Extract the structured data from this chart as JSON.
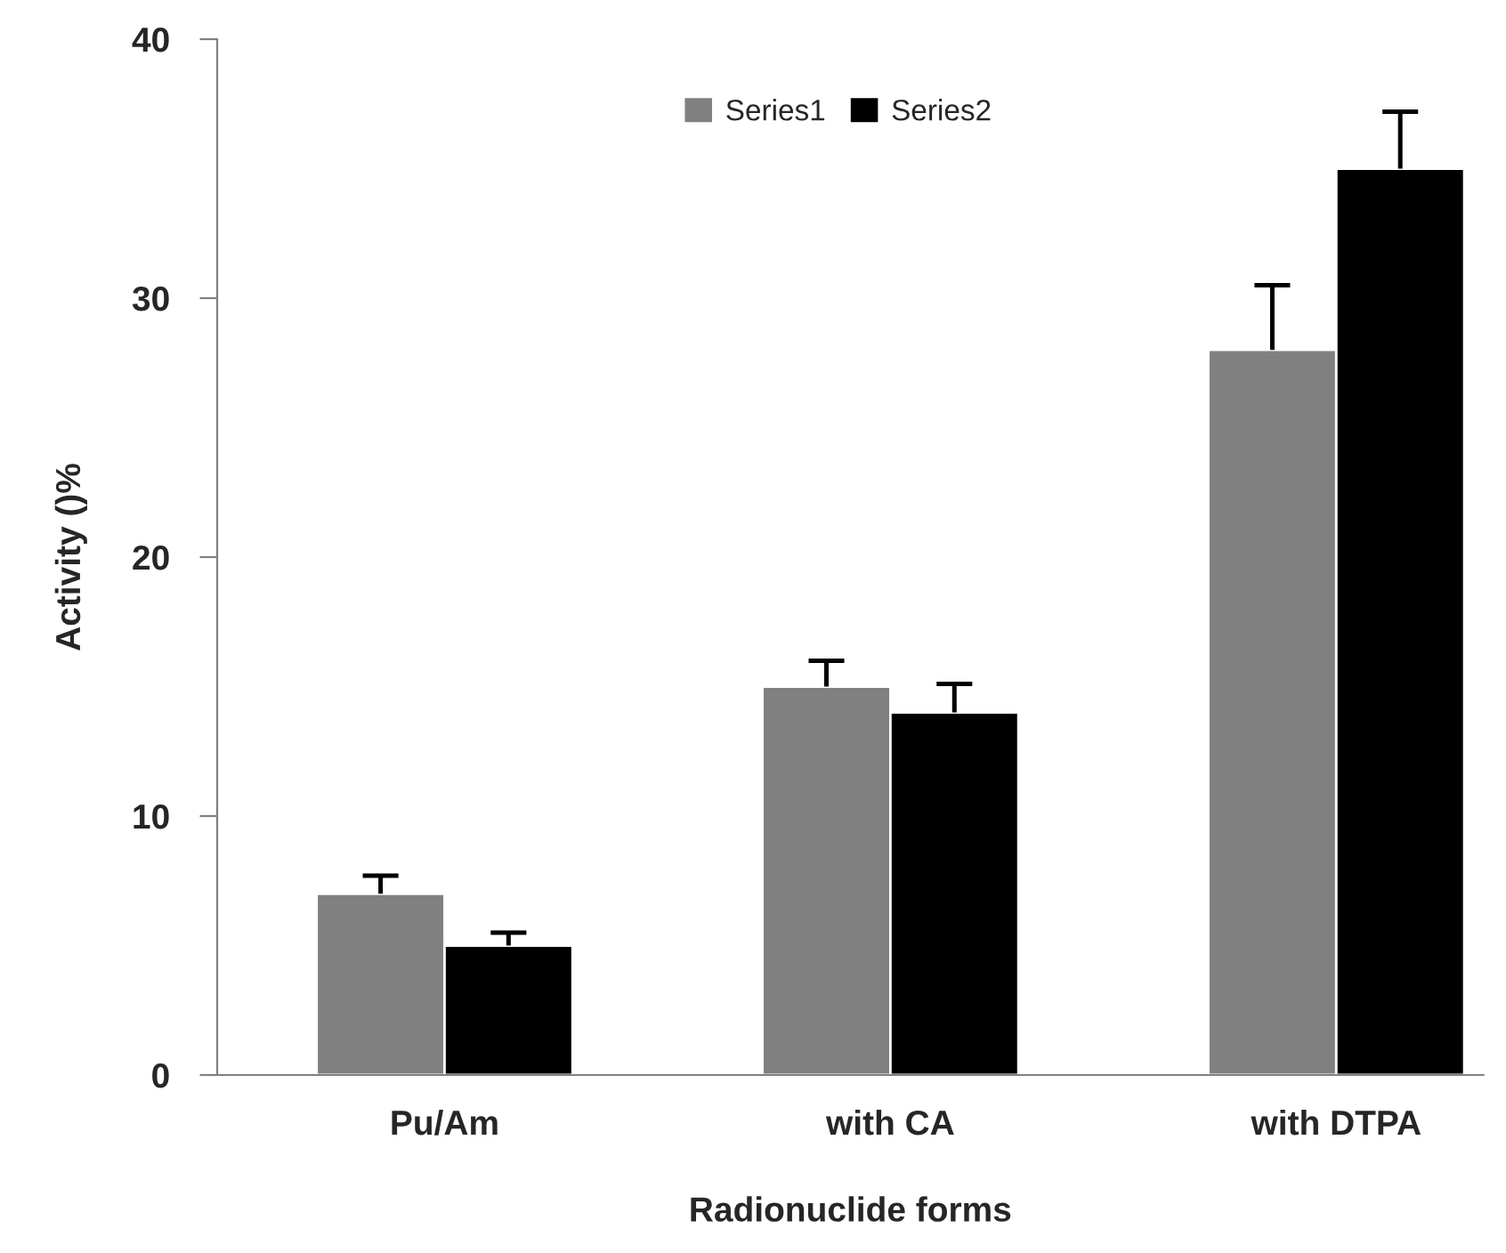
{
  "chart_data": {
    "type": "bar",
    "xlabel": "Radionuclide forms",
    "ylabel": "Activity ()%",
    "categories": [
      "Pu/Am",
      "with CA",
      "with DTPA"
    ],
    "series": [
      {
        "name": "Series1",
        "color": "#808080",
        "values": [
          7,
          15,
          28
        ],
        "errors": [
          0.7,
          1.0,
          2.5
        ]
      },
      {
        "name": "Series2",
        "color": "#000000",
        "values": [
          5,
          14,
          35
        ],
        "errors": [
          0.5,
          1.1,
          2.2
        ]
      }
    ],
    "ylim": [
      0,
      40
    ],
    "yticks": [
      0,
      10,
      20,
      30,
      40
    ],
    "grid": false,
    "legend": "top"
  }
}
